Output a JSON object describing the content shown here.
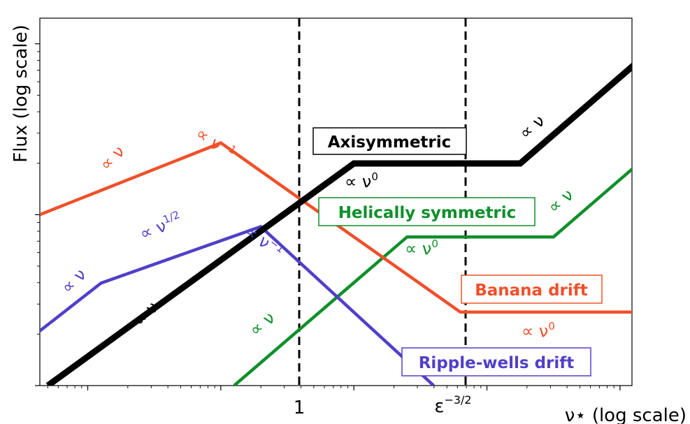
{
  "chart_data": {
    "type": "line",
    "xlabel": "ν⋆ (log scale)",
    "ylabel": "Flux (log scale)",
    "xscale": "log",
    "yscale": "log",
    "xlim_log10": [
      -2.36,
      2.09
    ],
    "ylim_log10": [
      -1.0,
      1.15
    ],
    "x_ticks": [
      {
        "value_log10": 0,
        "label": "1"
      },
      {
        "value_log10": 1.25,
        "label_base": "ε",
        "label_sup": "−3/2"
      }
    ],
    "vlines_log10": [
      0,
      1.25
    ],
    "series": [
      {
        "name": "Axisymmetric",
        "color": "#000000",
        "points_log10": [
          [
            -2.3,
            -1.0
          ],
          [
            0.0,
            0.3
          ],
          [
            1.25,
            0.3
          ],
          [
            2.2,
            0.94
          ]
        ],
        "slope_labels": [
          {
            "base": "∝ ν",
            "sup": ""
          },
          {
            "base": "∝ ν",
            "sup": "0"
          },
          {
            "base": "∝ ν",
            "sup": ""
          }
        ]
      },
      {
        "name": "Helically symmetric",
        "color": "#0e8f2a",
        "points_log10": [
          [
            -0.9,
            -1.0
          ],
          [
            0.4,
            -0.13
          ],
          [
            1.5,
            -0.13
          ],
          [
            2.2,
            0.34
          ]
        ],
        "slope_labels": [
          {
            "base": "∝ ν",
            "sup": ""
          },
          {
            "base": "∝ ν",
            "sup": "0"
          },
          {
            "base": "∝ ν",
            "sup": ""
          }
        ]
      },
      {
        "name": "Banana drift",
        "color": "#f0502a",
        "points_log10": [
          [
            -2.36,
            0.0
          ],
          [
            -1.0,
            0.42
          ],
          [
            0.8,
            -0.57
          ],
          [
            2.2,
            -0.57
          ]
        ],
        "slope_labels": [
          {
            "base": "∝ ν",
            "sup": ""
          },
          {
            "base": "∝ ν",
            "sup": "−1"
          },
          {
            "base": "∝ ν",
            "sup": "0"
          }
        ]
      },
      {
        "name": "Ripple-wells drift",
        "color": "#5040c8",
        "points_log10": [
          [
            -2.36,
            -0.68
          ],
          [
            -1.9,
            -0.4
          ],
          [
            -0.7,
            -0.07
          ],
          [
            0.6,
            -1.0
          ]
        ],
        "slope_labels": [
          {
            "base": "∝ ν",
            "sup": ""
          },
          {
            "base": "∝ ν",
            "sup": "1/2"
          },
          {
            "base": "∝ ν",
            "sup": "−1"
          }
        ]
      }
    ]
  }
}
